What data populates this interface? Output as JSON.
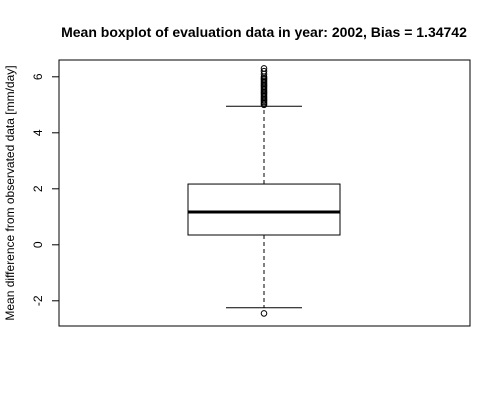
{
  "chart_data": {
    "type": "boxplot",
    "title": "Mean boxplot of evaluation data in year: 2002, Bias = 1.34742",
    "xlabel": "",
    "ylabel": "Mean difference from observated data [mm/day]",
    "ylim": [
      -2.9,
      6.6
    ],
    "yticks": [
      -2,
      0,
      2,
      4,
      6
    ],
    "grid": false,
    "legend": "none",
    "box": {
      "lower_whisker": -2.25,
      "q1": 0.35,
      "median": 1.17,
      "q3": 2.17,
      "upper_whisker": 4.95,
      "outliers": [
        -2.45,
        5.0,
        5.05,
        5.1,
        5.15,
        5.2,
        5.25,
        5.3,
        5.35,
        5.4,
        5.45,
        5.5,
        5.55,
        5.6,
        5.65,
        5.7,
        5.75,
        5.8,
        5.85,
        5.9,
        5.95,
        6.0,
        6.1,
        6.2,
        6.3
      ]
    }
  }
}
